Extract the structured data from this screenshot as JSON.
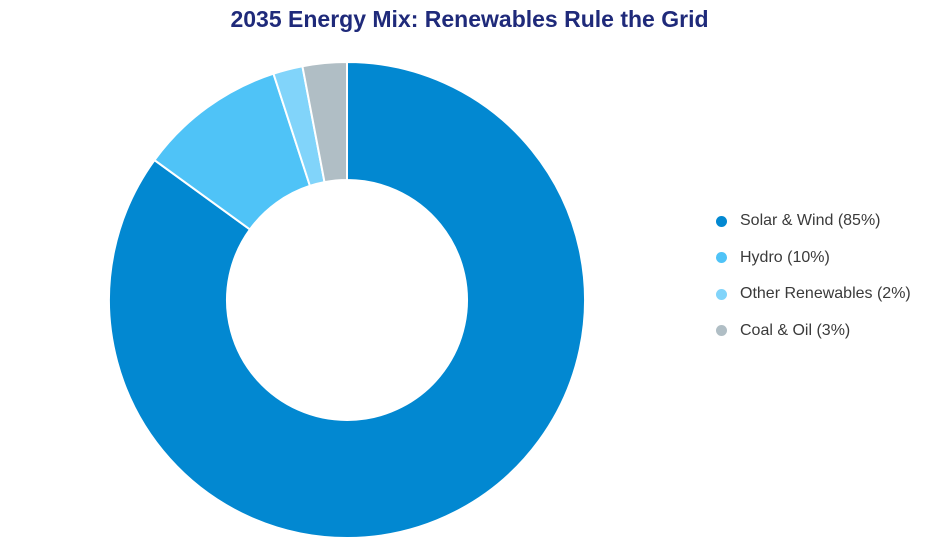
{
  "chart_data": {
    "type": "pie",
    "variant": "donut",
    "title": "2035 Energy Mix: Renewables Rule the Grid",
    "categories": [
      "Solar & Wind",
      "Hydro",
      "Other Renewables",
      "Coal & Oil"
    ],
    "values": [
      85,
      10,
      2,
      3
    ],
    "unit": "%",
    "legend_labels": [
      "Solar & Wind (85%)",
      "Hydro (10%)",
      "Other Renewables (2%)",
      "Coal & Oil (3%)"
    ],
    "colors": [
      "#0288d1",
      "#4fc3f7",
      "#81d4fa",
      "#b0bec5"
    ],
    "legend_position": "right"
  }
}
